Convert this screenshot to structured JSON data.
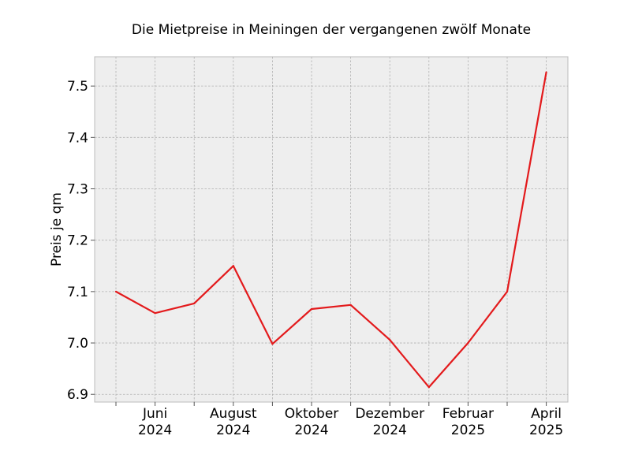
{
  "chart_data": {
    "type": "line",
    "title": "Die Mietpreise in Meiningen der vergangenen zwölf Monate",
    "xlabel": "",
    "ylabel": "Preis je qm",
    "x": [
      "2024-05",
      "2024-06",
      "2024-07",
      "2024-08",
      "2024-09",
      "2024-10",
      "2024-11",
      "2024-12",
      "2025-01",
      "2025-02",
      "2025-03",
      "2025-04"
    ],
    "series": [
      {
        "values": [
          7.1,
          7.058,
          7.077,
          7.15,
          6.998,
          7.066,
          7.074,
          7.006,
          6.914,
          7.0,
          7.1,
          7.527
        ],
        "color": "#e31a1c"
      }
    ],
    "ylim": [
      6.885,
      7.557
    ],
    "yticks": [
      "6.9",
      "7.0",
      "7.1",
      "7.2",
      "7.3",
      "7.4",
      "7.5"
    ],
    "xtick_labels": [
      {
        "month": "Juni",
        "year": "2024"
      },
      {
        "month": "August",
        "year": "2024"
      },
      {
        "month": "Oktober",
        "year": "2024"
      },
      {
        "month": "Dezember",
        "year": "2024"
      },
      {
        "month": "Februar",
        "year": "2025"
      },
      {
        "month": "April",
        "year": "2025"
      }
    ],
    "grid": true,
    "background_color": "#eeeeee"
  }
}
